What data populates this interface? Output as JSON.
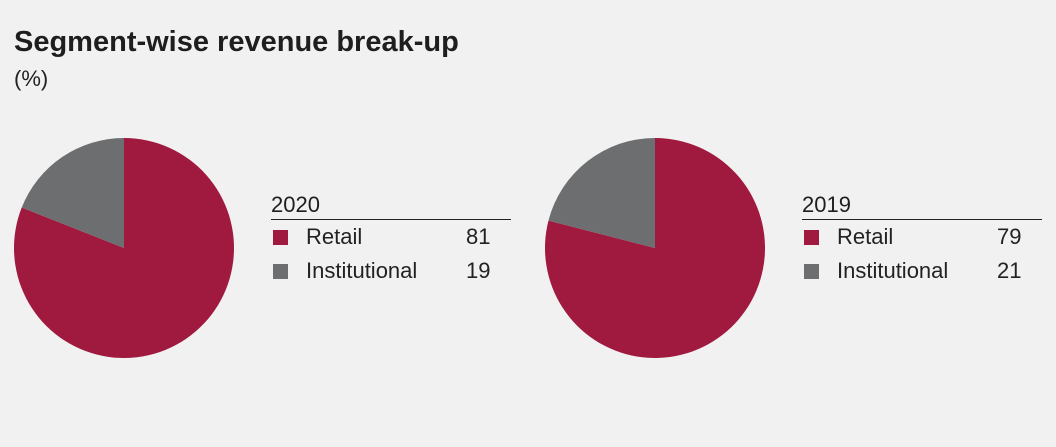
{
  "title": "Segment-wise revenue break-up",
  "subtitle": "(%)",
  "colors": {
    "retail": "#a0193f",
    "institutional": "#6d6e70"
  },
  "chart_data": [
    {
      "type": "pie",
      "year": "2020",
      "categories": [
        "Retail",
        "Institutional"
      ],
      "values": [
        81,
        19
      ],
      "colors": [
        "#a0193f",
        "#6d6e70"
      ]
    },
    {
      "type": "pie",
      "year": "2019",
      "categories": [
        "Retail",
        "Institutional"
      ],
      "values": [
        79,
        21
      ],
      "colors": [
        "#a0193f",
        "#6d6e70"
      ]
    }
  ]
}
